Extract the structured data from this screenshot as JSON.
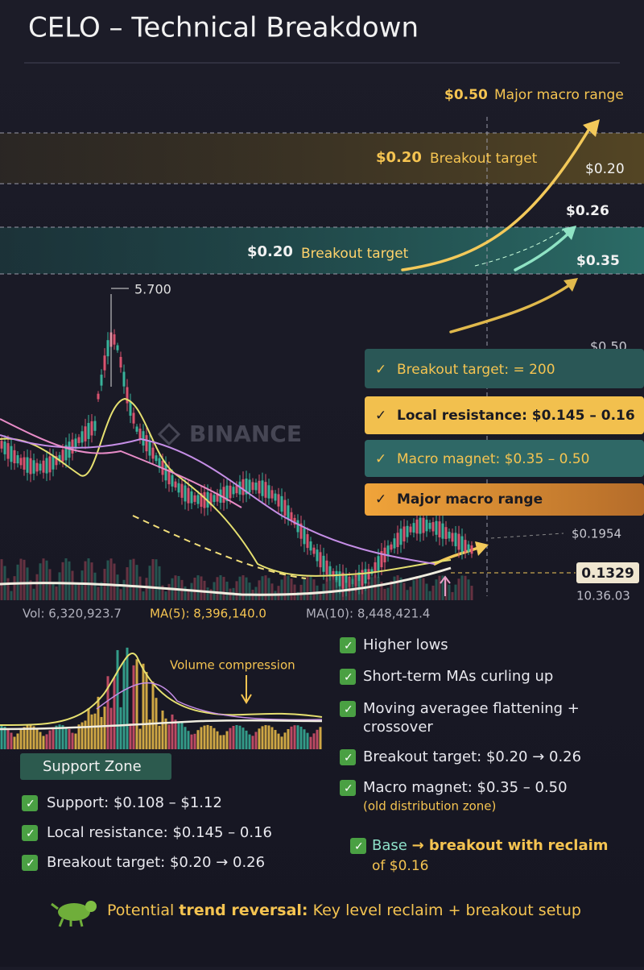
{
  "header": {
    "title": "CELO – Technical Breakdown"
  },
  "levels": [
    {
      "price": "$0.50",
      "label": "Major macro range"
    },
    {
      "price": "$0.20",
      "label": "Breakout target"
    },
    {
      "price": "$0.20",
      "label": "Breakout target"
    }
  ],
  "axis_labels": [
    "$0.20",
    "$0.26",
    "$0.35",
    "$0.50",
    "$0.1954"
  ],
  "current_price": "0.1329",
  "time": "10.36.03",
  "peak_label": "5.700",
  "watermark": "BINANCE",
  "badges": [
    "Breakout target: = 200",
    "Local resistance: $0.145 – 0.16",
    "Macro magnet: $0.35 – 0.50",
    "Major macro range"
  ],
  "volume_stats": [
    "Vol: 6,320,923.7",
    "MA(5): 8,396,140.0",
    "MA(10): 8,448,421.4"
  ],
  "volume_note": "Volume compression",
  "support_zone": "Support Zone",
  "left_checklist": [
    "Support: $0.108 – $1.12",
    "Local resistance: $0.145 – 0.16",
    "Breakout target: $0.20 → 0.26"
  ],
  "right_checklist": [
    {
      "text": "Higher lows"
    },
    {
      "text": "Short-term MAs curling up"
    },
    {
      "text": "Moving averagee flattening +",
      "sub": "crossover"
    },
    {
      "text": "Breakout target: $0.20 → 0.26"
    },
    {
      "text": "Macro magnet:  $0.35 – 0.50",
      "sub": "(old distribution zone)"
    }
  ],
  "conclusion": {
    "base": "Base",
    "arrow": "→ breakout with",
    "reclaim": "reclaim",
    "of": "of $0.16"
  },
  "footer": {
    "lead": "Potential",
    "bold": "trend reversal:",
    "rest": "Key level reclaim + breakout setup"
  }
}
